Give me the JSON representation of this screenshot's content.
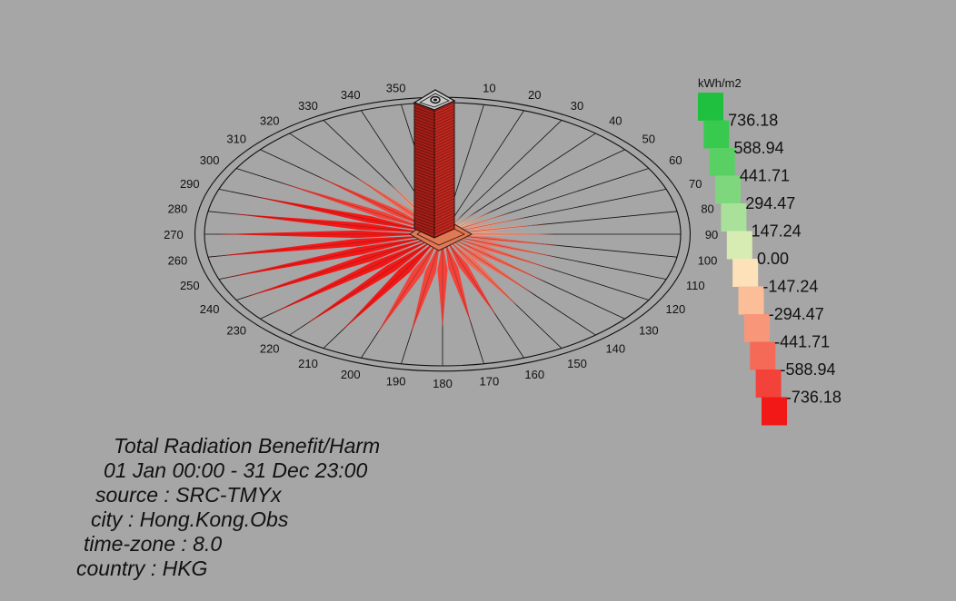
{
  "chart_data": {
    "type": "polar-bar-3d",
    "title": "",
    "legend": {
      "unit": "kWh/m2",
      "placement": "right",
      "values": [
        "736.18",
        "588.94",
        "441.71",
        "294.47",
        "147.24",
        "0.00",
        "-147.24",
        "-294.47",
        "-441.71",
        "-588.94",
        "-736.18"
      ],
      "colors": [
        "#1fbf3f",
        "#38c94f",
        "#58d064",
        "#7fd77d",
        "#a9e19a",
        "#d6ecb3",
        "#fde2b9",
        "#fbbe98",
        "#f8967a",
        "#f56a57",
        "#f3423a",
        "#f21818"
      ]
    },
    "angles": [
      "350",
      "10",
      "20",
      "30",
      "40",
      "50",
      "60",
      "70",
      "80",
      "90",
      "100",
      "110",
      "120",
      "130",
      "140",
      "150",
      "160",
      "170",
      "180",
      "190",
      "200",
      "210",
      "220",
      "230",
      "240",
      "250",
      "260",
      "270",
      "280",
      "290",
      "300",
      "310",
      "320",
      "330",
      "340"
    ],
    "directions": [
      0,
      10,
      20,
      30,
      40,
      50,
      60,
      70,
      80,
      90,
      100,
      110,
      120,
      130,
      140,
      150,
      160,
      170,
      180,
      190,
      200,
      210,
      220,
      230,
      240,
      250,
      260,
      270,
      280,
      290,
      300,
      310,
      320,
      330,
      340,
      350
    ],
    "values": [
      -40,
      -60,
      -90,
      -130,
      -170,
      -210,
      -250,
      -290,
      -330,
      -360,
      -380,
      -390,
      -410,
      -430,
      -450,
      -480,
      -500,
      -520,
      -540,
      -580,
      -610,
      -640,
      -680,
      -710,
      -730,
      -736,
      -736,
      -720,
      -690,
      -650,
      -590,
      -520,
      -440,
      -340,
      -220,
      -110
    ],
    "rmax": 736.18
  },
  "info": {
    "lines": [
      "Total Radiation Benefit/Harm",
      "01 Jan 00:00 - 31 Dec 23:00",
      "source : SRC-TMYx",
      "city : Hong.Kong.Obs",
      "time-zone : 8.0",
      "country : HKG"
    ]
  },
  "colors": {
    "background": "#a6a6a6",
    "tower": "#c0271e"
  }
}
